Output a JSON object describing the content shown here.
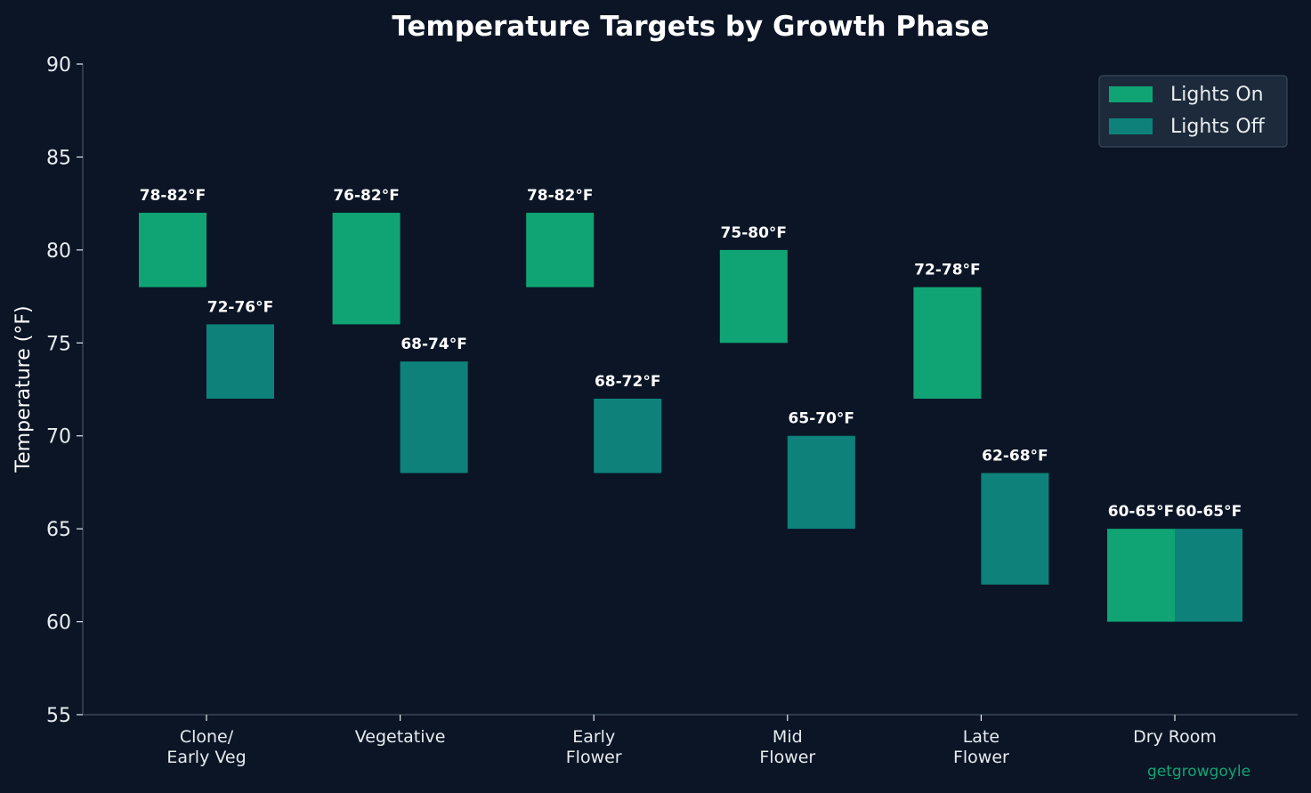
{
  "colors": {
    "background": "#0b1526",
    "lights_on": "#10a474",
    "lights_off": "#0e827a",
    "text": "#ffffff",
    "tick_text": "#e8ecf0",
    "axis": "#3a4656",
    "legend_bg": "#1c2a3b",
    "legend_border": "#3a4858",
    "watermark": "#10a474"
  },
  "chart_data": {
    "type": "bar",
    "subtype": "floating-range",
    "title": "Temperature Targets by Growth Phase",
    "xlabel": "",
    "ylabel": "Temperature (°F)",
    "ylim": [
      55,
      90
    ],
    "yticks": [
      "55",
      "60",
      "65",
      "70",
      "75",
      "80",
      "85",
      "90"
    ],
    "grid": false,
    "legend_position": "top-right",
    "categories": [
      [
        "Clone/",
        "Early Veg"
      ],
      [
        "Vegetative"
      ],
      [
        "Early",
        "Flower"
      ],
      [
        "Mid",
        "Flower"
      ],
      [
        "Late",
        "Flower"
      ],
      [
        "Dry Room"
      ]
    ],
    "series": [
      {
        "name": "Lights On",
        "ranges": [
          [
            78,
            82
          ],
          [
            76,
            82
          ],
          [
            78,
            82
          ],
          [
            75,
            80
          ],
          [
            72,
            78
          ],
          [
            60,
            65
          ]
        ],
        "labels": [
          "78-82°F",
          "76-82°F",
          "78-82°F",
          "75-80°F",
          "72-78°F",
          "60-65°F"
        ]
      },
      {
        "name": "Lights Off",
        "ranges": [
          [
            72,
            76
          ],
          [
            68,
            74
          ],
          [
            68,
            72
          ],
          [
            65,
            70
          ],
          [
            62,
            68
          ],
          [
            60,
            65
          ]
        ],
        "labels": [
          "72-76°F",
          "68-74°F",
          "68-72°F",
          "65-70°F",
          "62-68°F",
          "60-65°F"
        ]
      }
    ]
  },
  "watermark": "getgrowgoyle"
}
